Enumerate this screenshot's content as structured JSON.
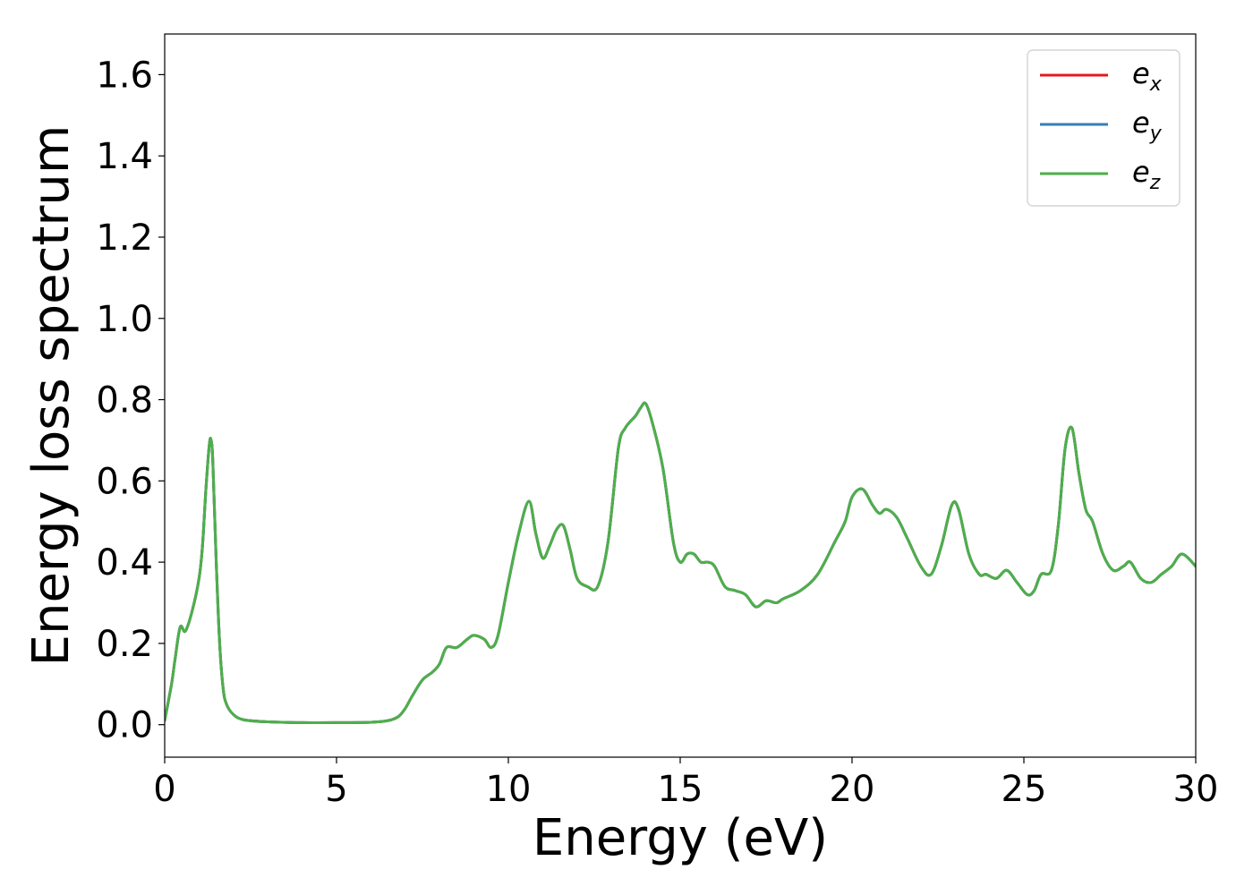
{
  "chart_data": {
    "type": "line",
    "title": "",
    "xlabel": "Energy (eV)",
    "ylabel": "Energy loss spectrum",
    "xlim": [
      0,
      30
    ],
    "ylim": [
      -0.08,
      1.7
    ],
    "xticks": [
      0,
      5,
      10,
      15,
      20,
      25,
      30
    ],
    "xtick_labels": [
      "0",
      "5",
      "10",
      "15",
      "20",
      "25",
      "30"
    ],
    "yticks": [
      0.0,
      0.2,
      0.4,
      0.6,
      0.8,
      1.0,
      1.2,
      1.4,
      1.6
    ],
    "ytick_labels": [
      "0.0",
      "0.2",
      "0.4",
      "0.6",
      "0.8",
      "1.0",
      "1.2",
      "1.4",
      "1.6"
    ],
    "grid": false,
    "legend_position": "top-right",
    "legend": [
      {
        "base": "e",
        "sub": "x",
        "color": "#e41a1c"
      },
      {
        "base": "e",
        "sub": "y",
        "color": "#377eb8"
      },
      {
        "base": "e",
        "sub": "z",
        "color": "#4daf4a"
      }
    ],
    "x": [
      0,
      0.2,
      0.3,
      0.45,
      0.6,
      0.8,
      1.0,
      1.1,
      1.2,
      1.3,
      1.35,
      1.4,
      1.5,
      1.6,
      1.7,
      1.8,
      2.0,
      2.3,
      3.0,
      4.0,
      5.0,
      6.0,
      6.5,
      6.8,
      7.0,
      7.2,
      7.5,
      7.8,
      8.0,
      8.2,
      8.5,
      8.8,
      9.0,
      9.3,
      9.5,
      9.7,
      10.0,
      10.3,
      10.6,
      10.8,
      11.0,
      11.2,
      11.4,
      11.6,
      11.8,
      12.0,
      12.3,
      12.6,
      12.9,
      13.2,
      13.4,
      13.7,
      13.85,
      14.0,
      14.2,
      14.5,
      14.8,
      15.0,
      15.2,
      15.4,
      15.6,
      15.8,
      16.0,
      16.3,
      16.6,
      16.9,
      17.2,
      17.5,
      17.8,
      18.0,
      18.5,
      19.0,
      19.5,
      19.8,
      20.0,
      20.3,
      20.6,
      20.8,
      21.0,
      21.3,
      21.6,
      22.0,
      22.3,
      22.6,
      22.9,
      23.1,
      23.4,
      23.7,
      23.9,
      24.2,
      24.5,
      24.8,
      25.1,
      25.3,
      25.5,
      25.8,
      26.0,
      26.2,
      26.4,
      26.6,
      26.8,
      27.0,
      27.3,
      27.6,
      27.9,
      28.1,
      28.4,
      28.7,
      29.0,
      29.3,
      29.6,
      30.0
    ],
    "series": [
      {
        "name": "e_x",
        "color": "#e41a1c",
        "values": [
          0.01,
          0.1,
          0.16,
          0.24,
          0.23,
          0.28,
          0.36,
          0.44,
          0.58,
          0.69,
          0.7,
          0.65,
          0.4,
          0.2,
          0.09,
          0.05,
          0.025,
          0.012,
          0.007,
          0.005,
          0.005,
          0.006,
          0.01,
          0.02,
          0.04,
          0.07,
          0.11,
          0.13,
          0.15,
          0.19,
          0.19,
          0.21,
          0.22,
          0.21,
          0.19,
          0.22,
          0.35,
          0.47,
          0.55,
          0.47,
          0.41,
          0.44,
          0.48,
          0.49,
          0.43,
          0.36,
          0.34,
          0.34,
          0.45,
          0.68,
          0.73,
          0.76,
          0.78,
          0.79,
          0.74,
          0.63,
          0.45,
          0.4,
          0.42,
          0.42,
          0.4,
          0.4,
          0.39,
          0.34,
          0.33,
          0.32,
          0.29,
          0.305,
          0.3,
          0.31,
          0.33,
          0.37,
          0.45,
          0.5,
          0.56,
          0.58,
          0.54,
          0.52,
          0.53,
          0.51,
          0.46,
          0.39,
          0.37,
          0.44,
          0.54,
          0.53,
          0.42,
          0.37,
          0.37,
          0.36,
          0.38,
          0.35,
          0.32,
          0.33,
          0.37,
          0.38,
          0.49,
          0.68,
          0.73,
          0.62,
          0.53,
          0.5,
          0.42,
          0.38,
          0.39,
          0.4,
          0.36,
          0.35,
          0.37,
          0.39,
          0.42,
          0.39
        ]
      },
      {
        "name": "e_y",
        "color": "#377eb8",
        "values": [
          0.01,
          0.1,
          0.16,
          0.24,
          0.23,
          0.28,
          0.36,
          0.44,
          0.58,
          0.69,
          0.7,
          0.65,
          0.4,
          0.2,
          0.09,
          0.05,
          0.025,
          0.012,
          0.007,
          0.005,
          0.005,
          0.006,
          0.01,
          0.02,
          0.04,
          0.07,
          0.11,
          0.13,
          0.15,
          0.19,
          0.19,
          0.21,
          0.22,
          0.21,
          0.19,
          0.22,
          0.35,
          0.47,
          0.55,
          0.47,
          0.41,
          0.44,
          0.48,
          0.49,
          0.43,
          0.36,
          0.34,
          0.34,
          0.45,
          0.68,
          0.73,
          0.76,
          0.78,
          0.79,
          0.74,
          0.63,
          0.45,
          0.4,
          0.42,
          0.42,
          0.4,
          0.4,
          0.39,
          0.34,
          0.33,
          0.32,
          0.29,
          0.305,
          0.3,
          0.31,
          0.33,
          0.37,
          0.45,
          0.5,
          0.56,
          0.58,
          0.54,
          0.52,
          0.53,
          0.51,
          0.46,
          0.39,
          0.37,
          0.44,
          0.54,
          0.53,
          0.42,
          0.37,
          0.37,
          0.36,
          0.38,
          0.35,
          0.32,
          0.33,
          0.37,
          0.38,
          0.49,
          0.68,
          0.73,
          0.62,
          0.53,
          0.5,
          0.42,
          0.38,
          0.39,
          0.4,
          0.36,
          0.35,
          0.37,
          0.39,
          0.42,
          0.39
        ]
      },
      {
        "name": "e_z",
        "color": "#4daf4a",
        "values": [
          0.01,
          0.1,
          0.16,
          0.24,
          0.23,
          0.28,
          0.36,
          0.44,
          0.58,
          0.69,
          0.7,
          0.65,
          0.4,
          0.2,
          0.09,
          0.05,
          0.025,
          0.012,
          0.007,
          0.005,
          0.005,
          0.006,
          0.01,
          0.02,
          0.04,
          0.07,
          0.11,
          0.13,
          0.15,
          0.19,
          0.19,
          0.21,
          0.22,
          0.21,
          0.19,
          0.22,
          0.35,
          0.47,
          0.55,
          0.47,
          0.41,
          0.44,
          0.48,
          0.49,
          0.43,
          0.36,
          0.34,
          0.34,
          0.45,
          0.68,
          0.73,
          0.76,
          0.78,
          0.79,
          0.74,
          0.63,
          0.45,
          0.4,
          0.42,
          0.42,
          0.4,
          0.4,
          0.39,
          0.34,
          0.33,
          0.32,
          0.29,
          0.305,
          0.3,
          0.31,
          0.33,
          0.37,
          0.45,
          0.5,
          0.56,
          0.58,
          0.54,
          0.52,
          0.53,
          0.51,
          0.46,
          0.39,
          0.37,
          0.44,
          0.54,
          0.53,
          0.42,
          0.37,
          0.37,
          0.36,
          0.38,
          0.35,
          0.32,
          0.33,
          0.37,
          0.38,
          0.49,
          0.68,
          0.73,
          0.62,
          0.53,
          0.5,
          0.42,
          0.38,
          0.39,
          0.4,
          0.36,
          0.35,
          0.37,
          0.39,
          0.42,
          0.39
        ]
      }
    ]
  }
}
